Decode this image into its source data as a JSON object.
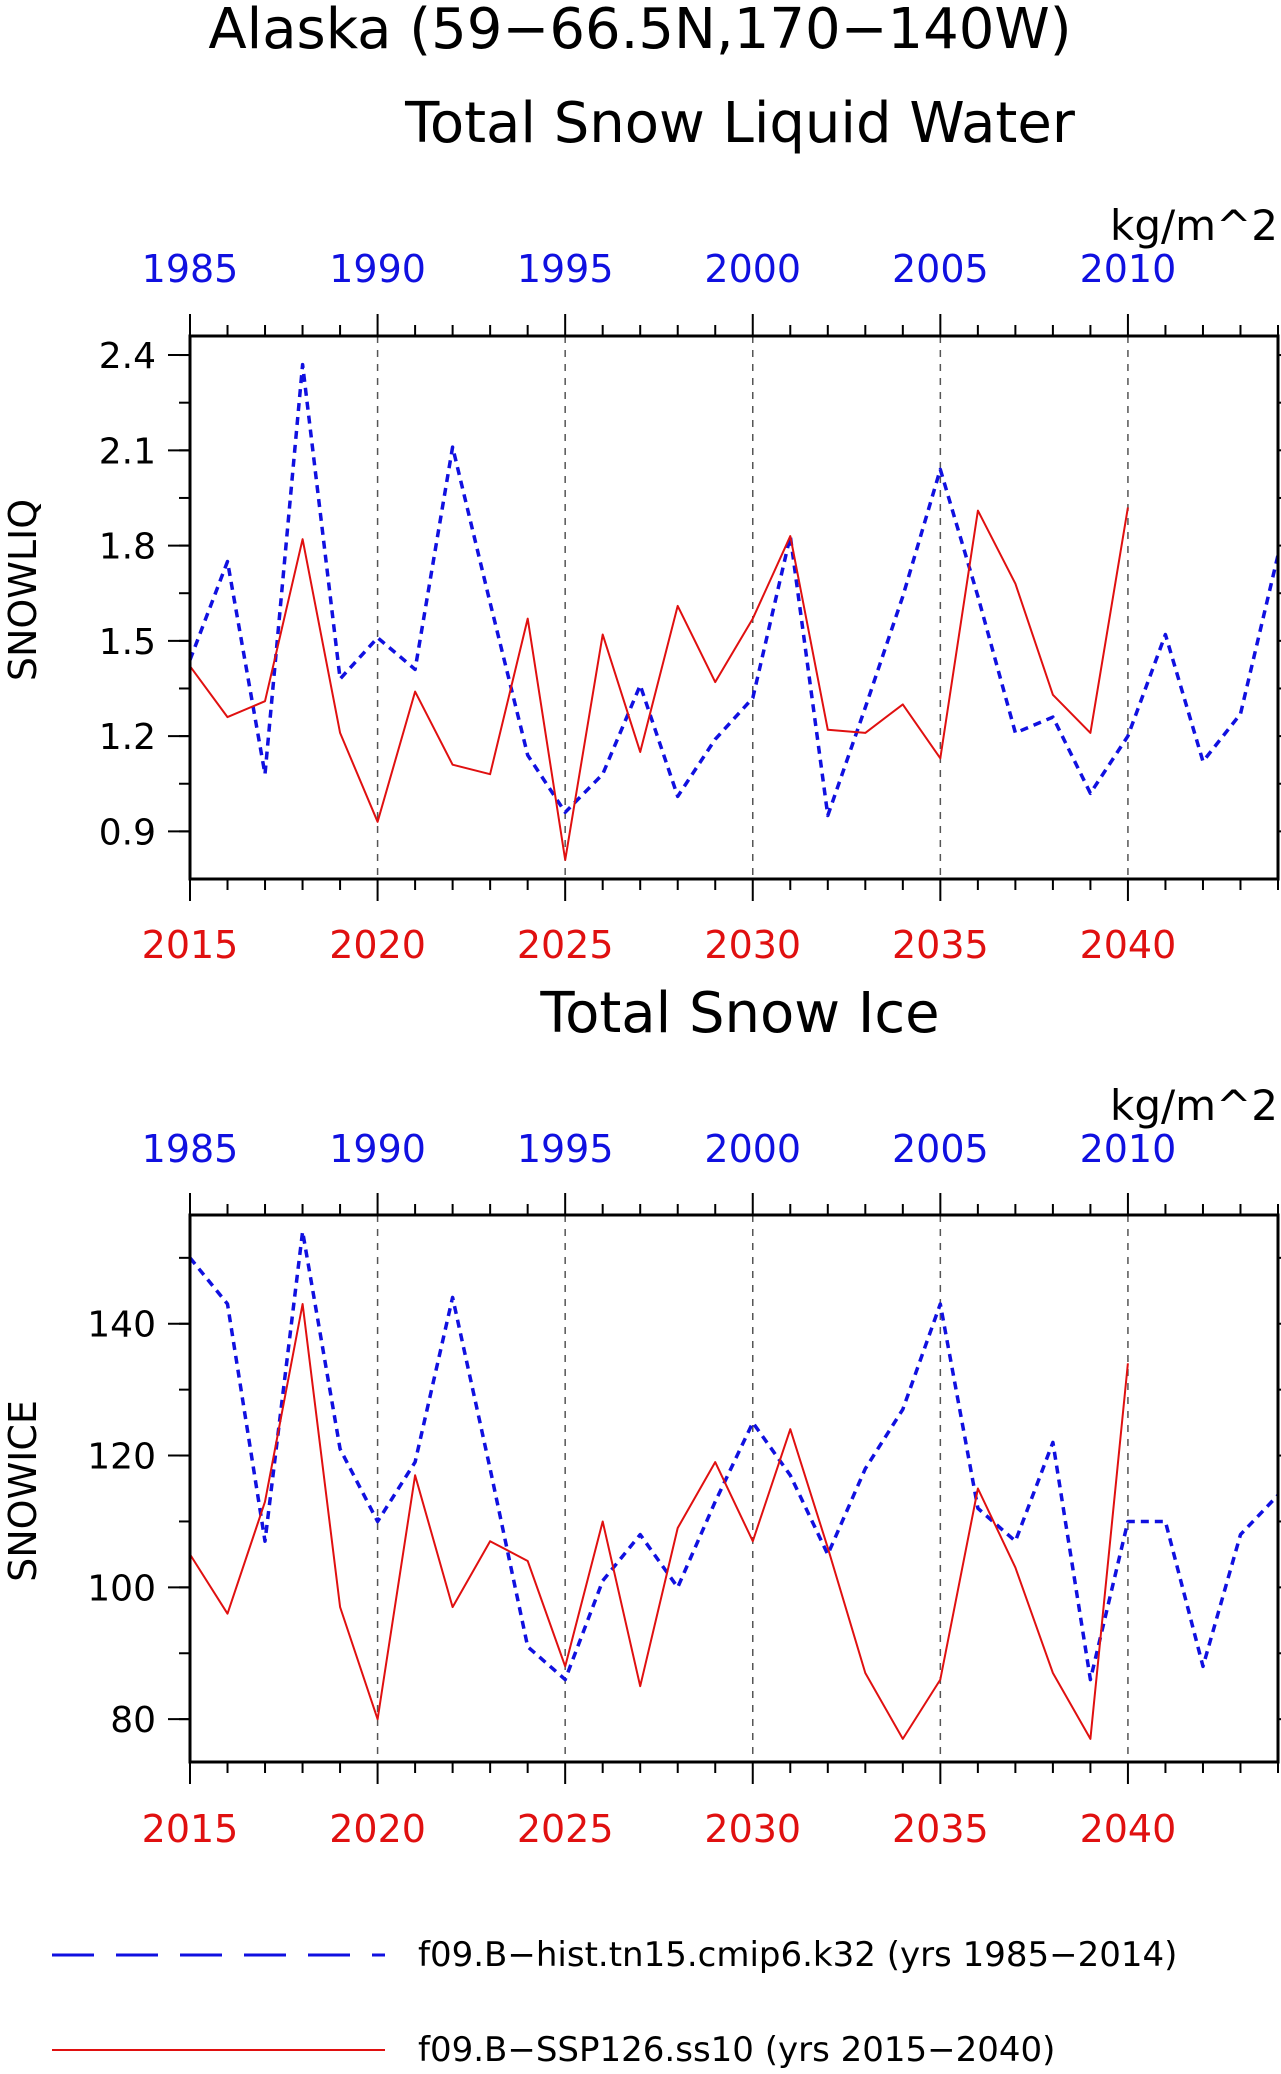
{
  "page": {
    "title_line1": "Alaska (59−66.5N,170−140W)",
    "colors": {
      "hist": "#1010e0",
      "ssp": "#e01010",
      "axis": "#000000",
      "grid": "#555555"
    }
  },
  "legend": {
    "hist_label": "f09.B−hist.tn15.cmip6.k32 (yrs 1985−2014)",
    "ssp_label": "f09.B−SSP126.ss10 (yrs 2015−2040)"
  },
  "chart_data": [
    {
      "type": "line",
      "title": "Total Snow Liquid Water",
      "units": "kg/m^2",
      "ylabel": "SNOWLIQ",
      "ylim": [
        0.75,
        2.46
      ],
      "yticks": [
        "0.9",
        "1.2",
        "1.5",
        "1.8",
        "2.1",
        "2.4"
      ],
      "ytick_values": [
        0.9,
        1.2,
        1.5,
        1.8,
        2.1,
        2.4
      ],
      "xlim": [
        2015,
        2044
      ],
      "bottom_axis_ticks": [
        "2015",
        "2020",
        "2025",
        "2030",
        "2035",
        "2040"
      ],
      "top_axis_ticks": [
        "1985",
        "1990",
        "1995",
        "2000",
        "2005",
        "2010"
      ],
      "series": [
        {
          "years": [
            1985,
            1986,
            1987,
            1988,
            1989,
            1990,
            1991,
            1992,
            1993,
            1994,
            1995,
            1996,
            1997,
            1998,
            1999,
            2000,
            2001,
            2002,
            2003,
            2004,
            2005,
            2006,
            2007,
            2008,
            2009,
            2010,
            2011,
            2012,
            2013,
            2014
          ],
          "values": [
            1.44,
            1.75,
            1.08,
            2.37,
            1.38,
            1.51,
            1.41,
            2.11,
            1.62,
            1.14,
            0.96,
            1.08,
            1.36,
            1.01,
            1.19,
            1.32,
            1.83,
            0.95,
            1.29,
            1.64,
            2.04,
            1.64,
            1.21,
            1.26,
            1.02,
            1.2,
            1.52,
            1.12,
            1.27,
            1.77
          ]
        },
        {
          "years": [
            2015,
            2016,
            2017,
            2018,
            2019,
            2020,
            2021,
            2022,
            2023,
            2024,
            2025,
            2026,
            2027,
            2028,
            2029,
            2030,
            2031,
            2032,
            2033,
            2034,
            2035,
            2036,
            2037,
            2038,
            2039,
            2040
          ],
          "values": [
            1.42,
            1.26,
            1.31,
            1.82,
            1.21,
            0.93,
            1.34,
            1.11,
            1.08,
            1.57,
            0.81,
            1.52,
            1.15,
            1.61,
            1.37,
            1.57,
            1.83,
            1.22,
            1.21,
            1.3,
            1.13,
            1.91,
            1.68,
            1.33,
            1.21,
            1.92
          ]
        }
      ]
    },
    {
      "type": "line",
      "title": "Total Snow Ice",
      "units": "kg/m^2",
      "ylabel": "SNOWICE",
      "ylim": [
        73.5,
        156.5
      ],
      "yticks": [
        "80",
        "100",
        "120",
        "140"
      ],
      "ytick_values": [
        80,
        100,
        120,
        140
      ],
      "xlim": [
        2015,
        2044
      ],
      "bottom_axis_ticks": [
        "2015",
        "2020",
        "2025",
        "2030",
        "2035",
        "2040"
      ],
      "top_axis_ticks": [
        "1985",
        "1990",
        "1995",
        "2000",
        "2005",
        "2010"
      ],
      "series": [
        {
          "years": [
            1985,
            1986,
            1987,
            1988,
            1989,
            1990,
            1991,
            1992,
            1993,
            1994,
            1995,
            1996,
            1997,
            1998,
            1999,
            2000,
            2001,
            2002,
            2003,
            2004,
            2005,
            2006,
            2007,
            2008,
            2009,
            2010,
            2011,
            2012,
            2013,
            2014
          ],
          "values": [
            150,
            143,
            107,
            154,
            121,
            110,
            119,
            144,
            118,
            91,
            86,
            101,
            108,
            100,
            113,
            125,
            117,
            105,
            118,
            127,
            143,
            112,
            107,
            122,
            86,
            110,
            110,
            88,
            108,
            114
          ]
        },
        {
          "years": [
            2015,
            2016,
            2017,
            2018,
            2019,
            2020,
            2021,
            2022,
            2023,
            2024,
            2025,
            2026,
            2027,
            2028,
            2029,
            2030,
            2031,
            2032,
            2033,
            2034,
            2035,
            2036,
            2037,
            2038,
            2039,
            2040
          ],
          "values": [
            105,
            96,
            113,
            143,
            97,
            80,
            117,
            97,
            107,
            104,
            88,
            110,
            85,
            109,
            119,
            107,
            124,
            106,
            87,
            77,
            86,
            115,
            103,
            87,
            77,
            134
          ]
        }
      ]
    }
  ]
}
